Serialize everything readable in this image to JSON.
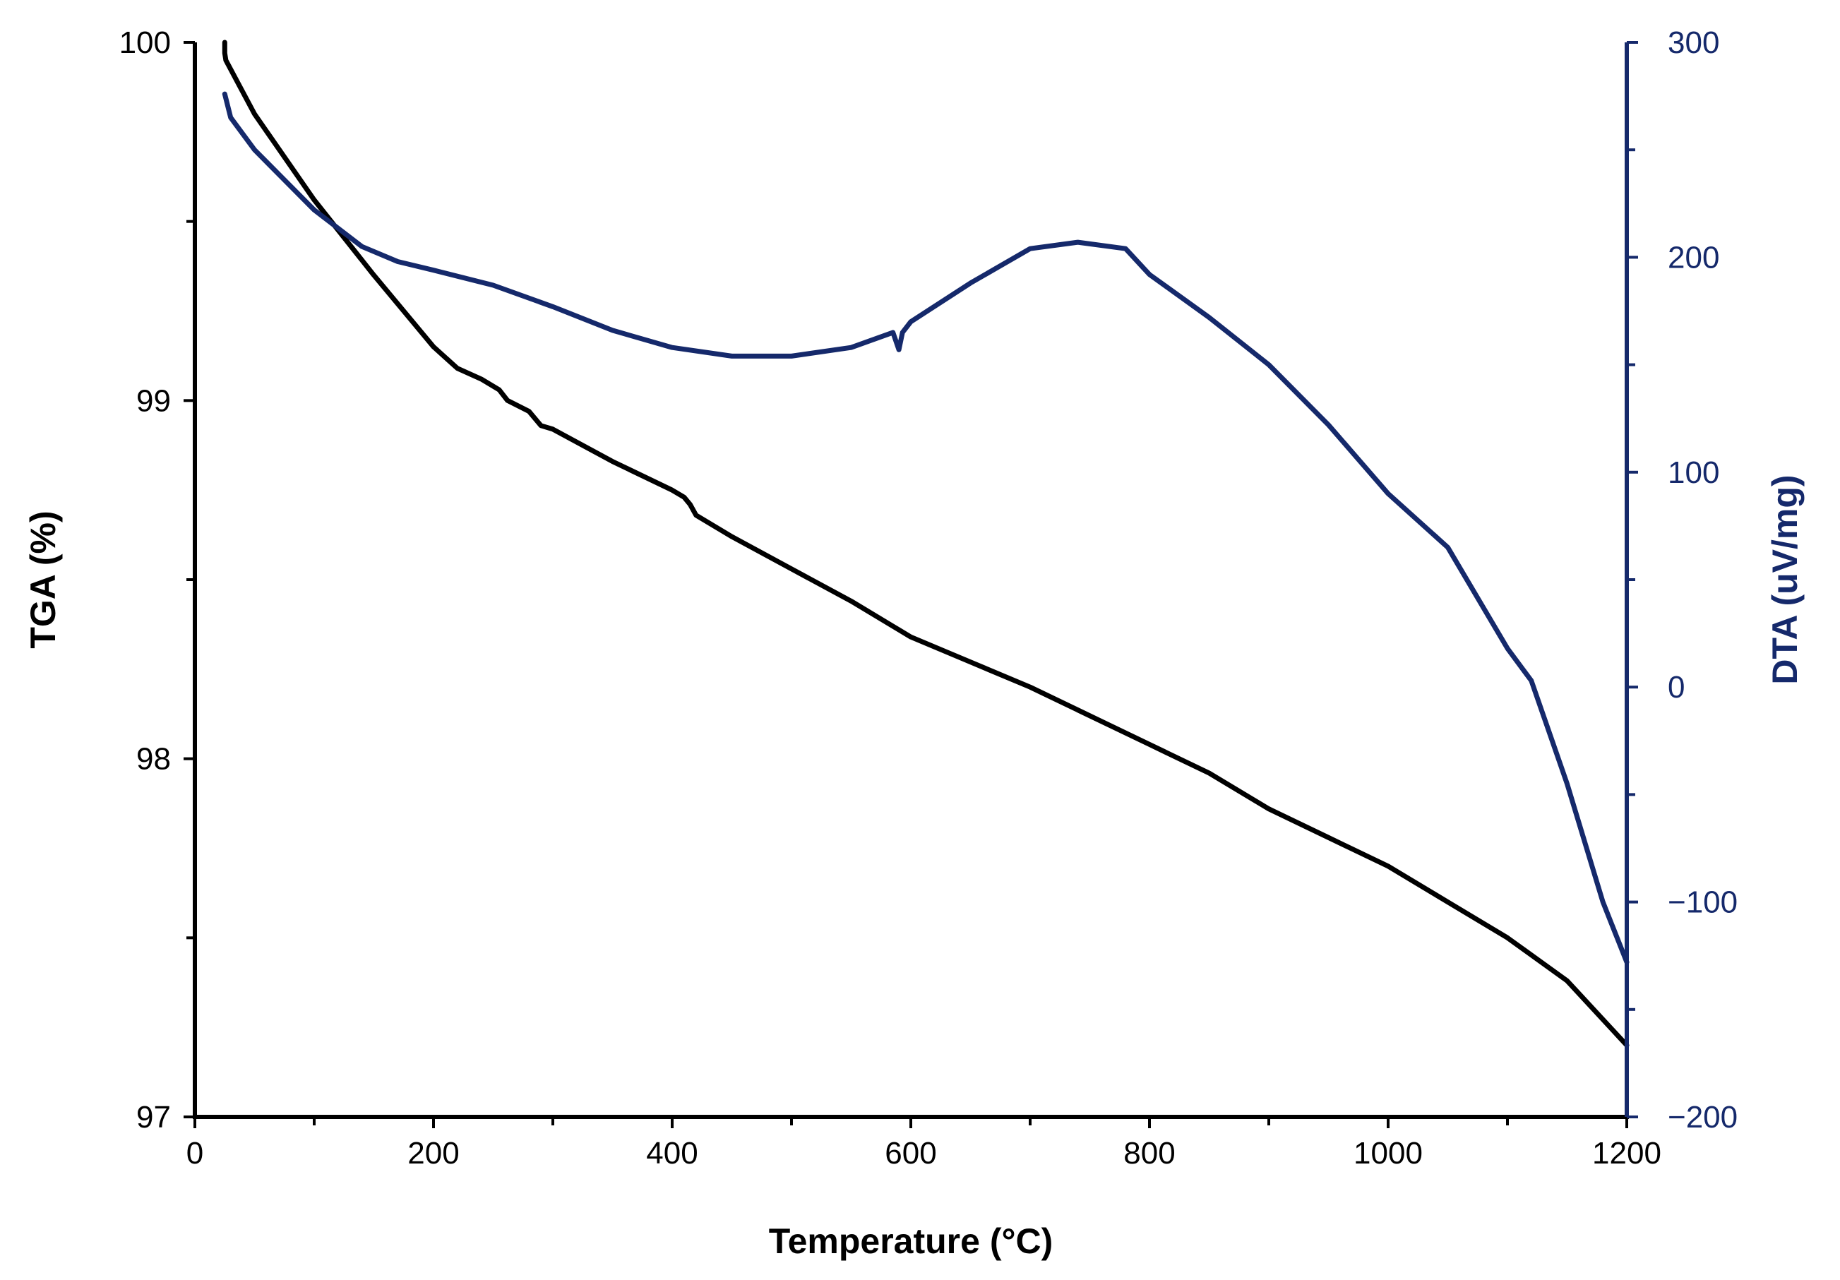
{
  "chart_data": {
    "type": "line",
    "xlabel": "Temperature (°C)",
    "ylabel_left": "TGA (%)",
    "ylabel_right": "DTA (uV/mg)",
    "xlim": [
      0,
      1200
    ],
    "ylim_left": [
      97,
      100
    ],
    "ylim_right": [
      -200,
      300
    ],
    "grid": false,
    "x_ticks": [
      {
        "value": 0,
        "label": "0"
      },
      {
        "value": 200,
        "label": "200"
      },
      {
        "value": 400,
        "label": "400"
      },
      {
        "value": 600,
        "label": "600"
      },
      {
        "value": 800,
        "label": "800"
      },
      {
        "value": 1000,
        "label": "1000"
      },
      {
        "value": 1200,
        "label": "1200"
      }
    ],
    "x_minor_ticks": [
      100,
      300,
      500,
      700,
      900,
      1100
    ],
    "y_left_ticks": [
      {
        "value": 97,
        "label": "97"
      },
      {
        "value": 98,
        "label": "98"
      },
      {
        "value": 99,
        "label": "99"
      },
      {
        "value": 100,
        "label": "100"
      }
    ],
    "y_left_minor_ticks": [
      97.5,
      98.5,
      99.5
    ],
    "y_right_ticks": [
      {
        "value": -200,
        "label": "−200"
      },
      {
        "value": -100,
        "label": "−100"
      },
      {
        "value": 0,
        "label": "0"
      },
      {
        "value": 100,
        "label": "100"
      },
      {
        "value": 200,
        "label": "200"
      },
      {
        "value": 300,
        "label": "300"
      }
    ],
    "y_right_minor_ticks": [
      -150,
      -50,
      50,
      150,
      250
    ],
    "series": [
      {
        "name": "TGA",
        "axis": "left",
        "color": "#000000",
        "x": [
          25,
          25,
          26,
          50,
          100,
          150,
          200,
          220,
          240,
          255,
          262,
          280,
          290,
          300,
          350,
          400,
          410,
          415,
          420,
          450,
          500,
          550,
          600,
          650,
          700,
          750,
          800,
          850,
          900,
          950,
          1000,
          1050,
          1100,
          1150,
          1200
        ],
        "y": [
          100,
          99.97,
          99.95,
          99.8,
          99.56,
          99.35,
          99.15,
          99.09,
          99.06,
          99.03,
          99.0,
          98.97,
          98.93,
          98.92,
          98.83,
          98.75,
          98.73,
          98.71,
          98.68,
          98.62,
          98.53,
          98.44,
          98.34,
          98.27,
          98.2,
          98.12,
          98.04,
          97.96,
          97.86,
          97.78,
          97.7,
          97.6,
          97.5,
          97.38,
          97.2
        ]
      },
      {
        "name": "DTA",
        "axis": "right",
        "color": "#15296b",
        "x": [
          25,
          30,
          50,
          100,
          140,
          170,
          200,
          250,
          300,
          350,
          400,
          450,
          500,
          550,
          585,
          590,
          593,
          600,
          650,
          700,
          740,
          780,
          800,
          850,
          900,
          950,
          1000,
          1050,
          1100,
          1120,
          1150,
          1180,
          1200
        ],
        "y": [
          276,
          265,
          250,
          222,
          205,
          198,
          194,
          187,
          177,
          166,
          158,
          154,
          154,
          158,
          165,
          157,
          165,
          170,
          188,
          204,
          207,
          204,
          192,
          172,
          150,
          122,
          90,
          65,
          18,
          3,
          -45,
          -100,
          -128
        ]
      }
    ]
  }
}
